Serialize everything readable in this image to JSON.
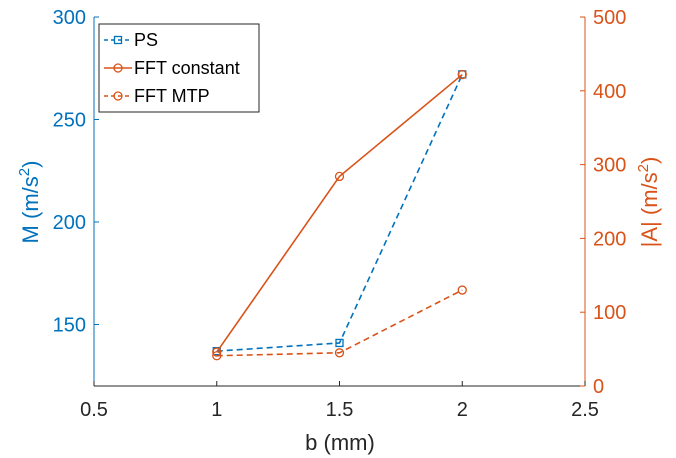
{
  "chart_data": {
    "type": "line",
    "x_axis": {
      "label": "b (mm)",
      "range": [
        0.5,
        2.5
      ],
      "ticks": [
        0.5,
        1,
        1.5,
        2,
        2.5
      ],
      "tick_labels": [
        "0.5",
        "1",
        "1.5",
        "2",
        "2.5"
      ]
    },
    "y_left": {
      "label": "M (m/s²)",
      "label_parts": [
        "M (m/s",
        "2",
        ")"
      ],
      "range": [
        120,
        300
      ],
      "ticks": [
        150,
        200,
        250,
        300
      ],
      "tick_labels": [
        "150",
        "200",
        "250",
        "300"
      ],
      "color": "#0072BD"
    },
    "y_right": {
      "label": "|A| (m/s²)",
      "label_parts": [
        "|A| (m/s",
        "2",
        ")"
      ],
      "range": [
        0,
        500
      ],
      "ticks": [
        0,
        100,
        200,
        300,
        400,
        500
      ],
      "tick_labels": [
        "0",
        "100",
        "200",
        "300",
        "400",
        "500"
      ],
      "color": "#D95319"
    },
    "series": [
      {
        "name": "PS",
        "axis": "left",
        "color": "#0072BD",
        "line": "dashed",
        "marker": "square",
        "x": [
          1,
          1.5,
          2
        ],
        "y": [
          137,
          141,
          272
        ]
      },
      {
        "name": "FFT constant",
        "axis": "right",
        "color": "#D95319",
        "line": "solid",
        "marker": "circle",
        "x": [
          1,
          1.5,
          2
        ],
        "y": [
          46,
          284,
          422
        ]
      },
      {
        "name": "FFT MTP",
        "axis": "right",
        "color": "#D95319",
        "line": "dashed",
        "marker": "circle",
        "x": [
          1,
          1.5,
          2
        ],
        "y": [
          41,
          45,
          130
        ]
      }
    ],
    "legend": {
      "position": "top-left",
      "entries": [
        "PS",
        "FFT constant",
        "FFT MTP"
      ]
    },
    "grid": false
  }
}
